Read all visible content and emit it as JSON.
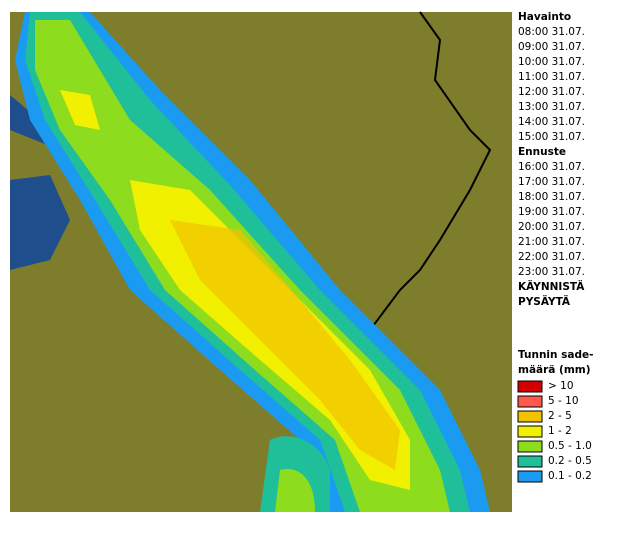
{
  "panel": {
    "observed_title": "Havainto",
    "observed_times": [
      "08:00 31.07.",
      "09:00 31.07.",
      "10:00 31.07.",
      "11:00 31.07.",
      "12:00 31.07.",
      "13:00 31.07.",
      "14:00 31.07.",
      "15:00 31.07."
    ],
    "forecast_title": "Ennuste",
    "forecast_times": [
      "16:00 31.07.",
      "17:00 31.07.",
      "18:00 31.07.",
      "19:00 31.07.",
      "20:00 31.07.",
      "21:00 31.07.",
      "22:00 31.07.",
      "23:00 31.07."
    ],
    "selected_forecast": 3,
    "start": "KÄYNNISTÄ",
    "stop": "PYSÄYTÄ"
  },
  "legend": {
    "title_lines": [
      "Tunnin sade-",
      "määrä (mm)"
    ],
    "items": [
      {
        "label": "> 10",
        "color": "#d40000"
      },
      {
        "label": "5 - 10",
        "color": "#ff5a4a"
      },
      {
        "label": "2 - 5",
        "color": "#f2c200"
      },
      {
        "label": "1 - 2",
        "color": "#f0f000"
      },
      {
        "label": "0.5 - 1.0",
        "color": "#8edc1e"
      },
      {
        "label": "0.2 - 0.5",
        "color": "#1fbf9a"
      },
      {
        "label": "0.1 - 0.2",
        "color": "#1a9af0"
      }
    ]
  }
}
